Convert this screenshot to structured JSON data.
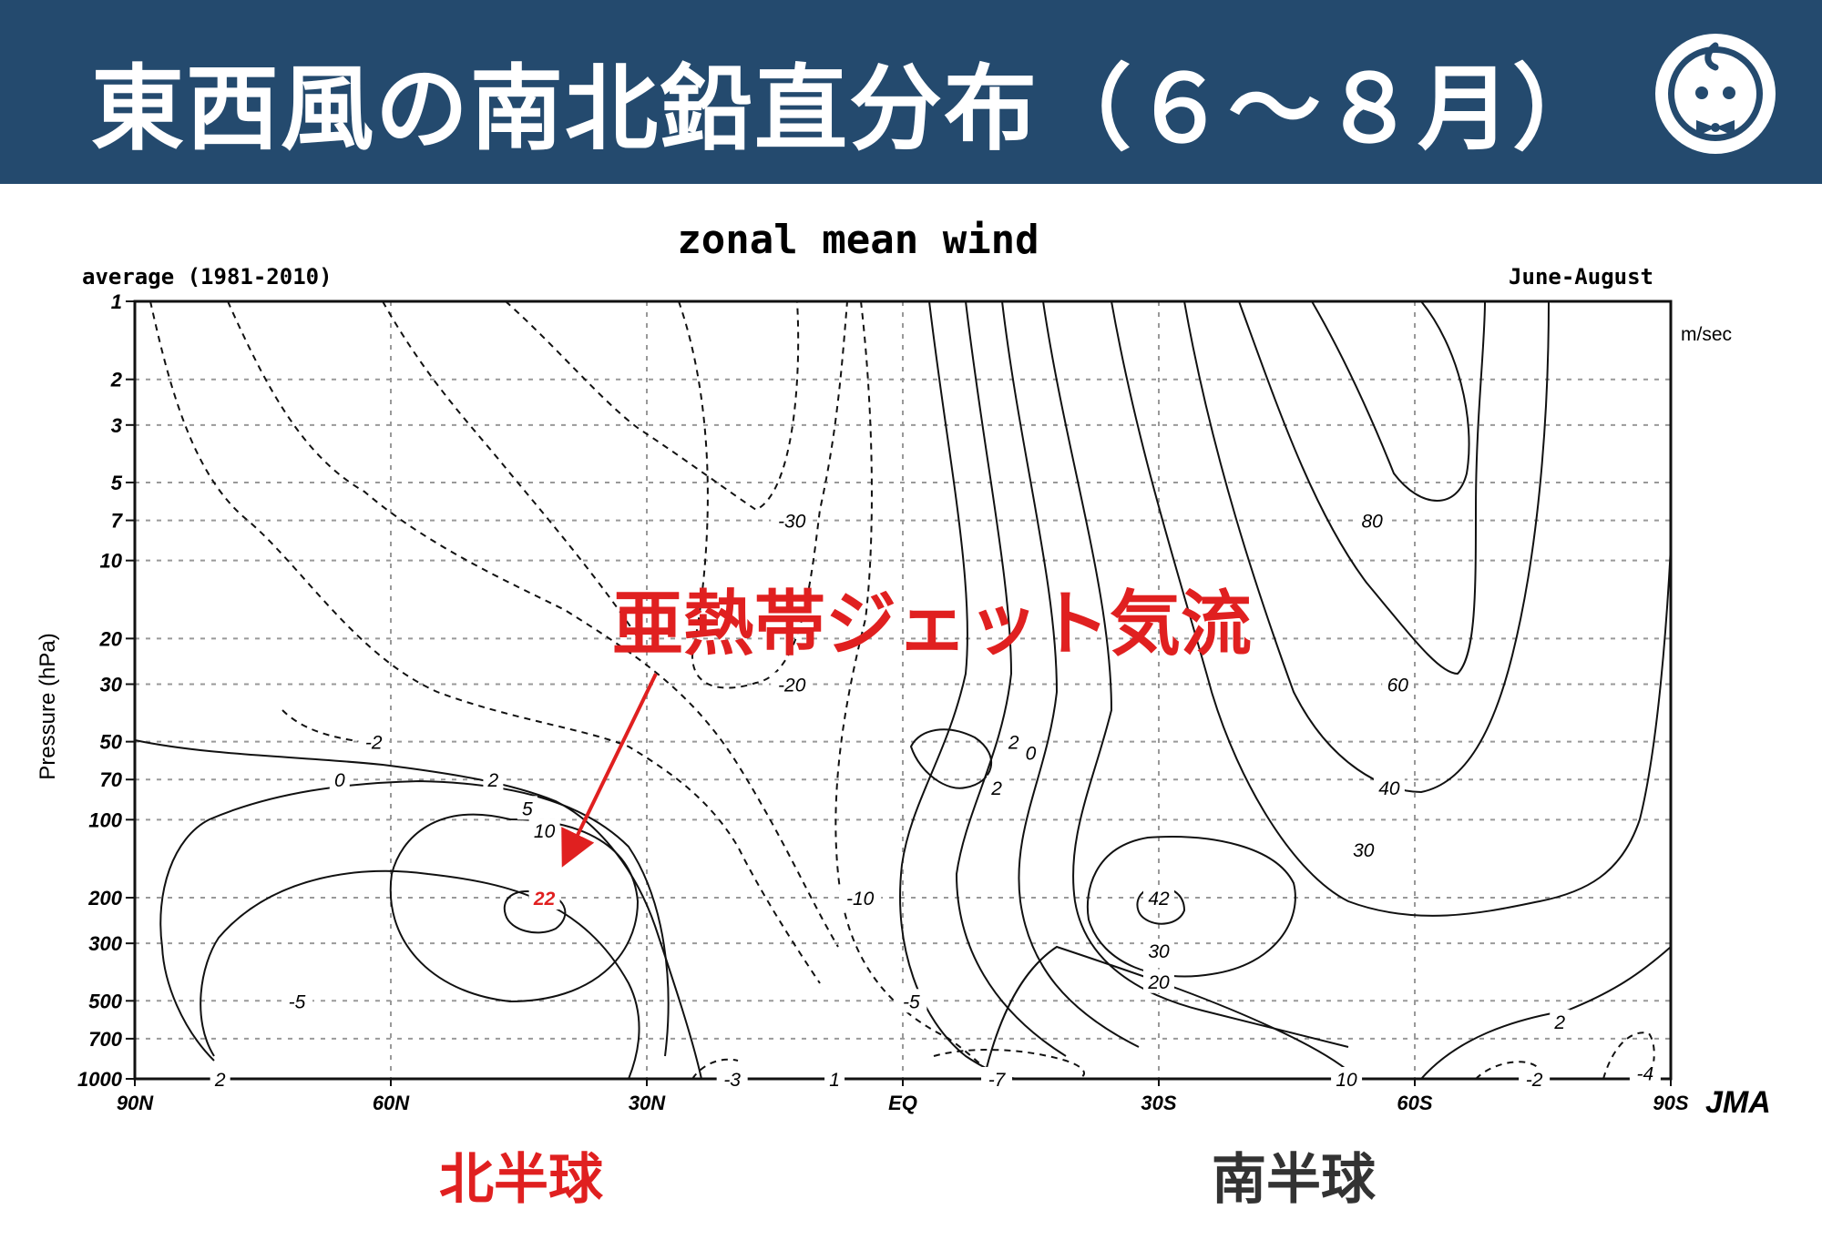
{
  "page": {
    "title": "東西風の南北鉛直分布（６～８月）",
    "accent_color": "#244a6e",
    "logo_icon": "mascot-logo-icon"
  },
  "annotation": {
    "label": "亜熱帯ジェット気流",
    "color": "#e02020",
    "arrow_icon": "arrow-icon"
  },
  "hemispheres": {
    "north": {
      "label": "北半球",
      "color": "#e02020"
    },
    "south": {
      "label": "南半球",
      "color": "#333333"
    }
  },
  "chart_data": {
    "type": "contour",
    "title": "zonal mean wind",
    "subtitle_left": "average (1981-2010)",
    "subtitle_right": "June-August",
    "ylabel": "Pressure (hPa)",
    "unit": "m/sec",
    "credit": "JMA",
    "y_scale": "log",
    "y_reversed": true,
    "ylim": [
      1000,
      1
    ],
    "xlim": [
      "90N",
      "90S"
    ],
    "grid": true,
    "x_ticks": [
      "90N",
      "60N",
      "30N",
      "EQ",
      "30S",
      "60S",
      "90S"
    ],
    "y_ticks": [
      "1",
      "2",
      "3",
      "5",
      "7",
      "10",
      "20",
      "30",
      "50",
      "70",
      "100",
      "200",
      "300",
      "500",
      "700",
      "1000"
    ],
    "contour_labels": [
      {
        "text": "-30",
        "lat": "13N",
        "p": 7
      },
      {
        "text": "-20",
        "lat": "13N",
        "p": 30
      },
      {
        "text": "-10",
        "lat": "5N",
        "p": 200
      },
      {
        "text": "-5",
        "lat": "1S",
        "p": 500
      },
      {
        "text": "-3",
        "lat": "20N",
        "p": 1000
      },
      {
        "text": "1",
        "lat": "8N",
        "p": 1000
      },
      {
        "text": "-7",
        "lat": "11S",
        "p": 1000
      },
      {
        "text": "-2",
        "lat": "62N",
        "p": 50
      },
      {
        "text": "0",
        "lat": "66N",
        "p": 70
      },
      {
        "text": "2",
        "lat": "48N",
        "p": 70
      },
      {
        "text": "5",
        "lat": "44N",
        "p": 90
      },
      {
        "text": "10",
        "lat": "42N",
        "p": 110
      },
      {
        "text": "22",
        "lat": "42N",
        "p": 200,
        "highlight": true
      },
      {
        "text": "-5",
        "lat": "71N",
        "p": 500
      },
      {
        "text": "2",
        "lat": "80N",
        "p": 1000
      },
      {
        "text": "2",
        "lat": "13S",
        "p": 50
      },
      {
        "text": "0",
        "lat": "15S",
        "p": 55
      },
      {
        "text": "2",
        "lat": "11S",
        "p": 75
      },
      {
        "text": "80",
        "lat": "55S",
        "p": 7
      },
      {
        "text": "60",
        "lat": "58S",
        "p": 30
      },
      {
        "text": "40",
        "lat": "57S",
        "p": 75
      },
      {
        "text": "30",
        "lat": "54S",
        "p": 130
      },
      {
        "text": "42",
        "lat": "30S",
        "p": 200
      },
      {
        "text": "30",
        "lat": "30S",
        "p": 320
      },
      {
        "text": "20",
        "lat": "30S",
        "p": 420
      },
      {
        "text": "10",
        "lat": "52S",
        "p": 1000
      },
      {
        "text": "2",
        "lat": "77S",
        "p": 600
      },
      {
        "text": "-4",
        "lat": "87S",
        "p": 950
      },
      {
        "text": "-2",
        "lat": "74S",
        "p": 1000
      }
    ],
    "jet_maxima": [
      {
        "hemisphere": "north",
        "lat": "42N",
        "p": 200,
        "value": 22
      },
      {
        "hemisphere": "south",
        "lat": "30S",
        "p": 200,
        "value": 42
      }
    ]
  }
}
